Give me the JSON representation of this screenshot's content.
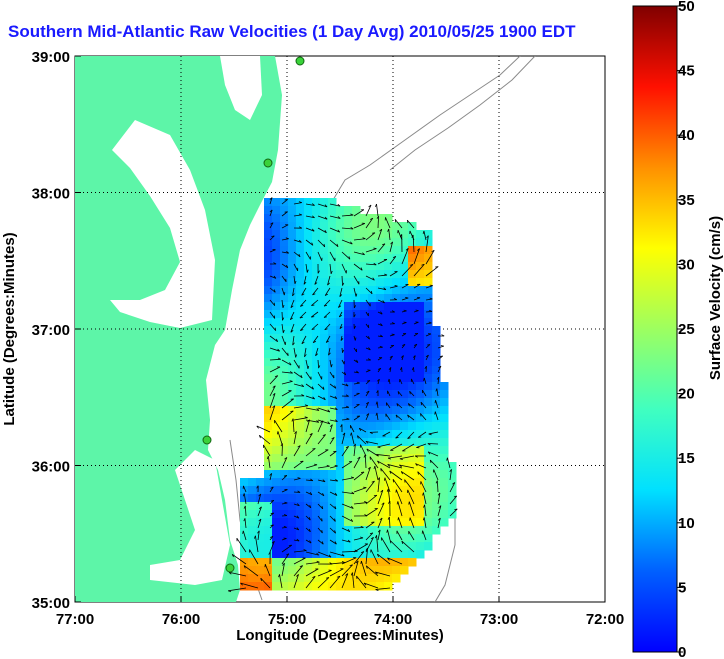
{
  "chart_data": {
    "type": "heatmap",
    "title": "Southern Mid-Atlantic Raw Velocities (1 Day Avg) 2010/05/25 1900 EDT",
    "xlabel": "Longitude (Degrees:Minutes)",
    "ylabel": "Latitude (Degrees:Minutes)",
    "x_ticks": [
      "77:00",
      "76:00",
      "75:00",
      "74:00",
      "73:00",
      "72:00"
    ],
    "y_ticks": [
      "35:00",
      "36:00",
      "37:00",
      "38:00",
      "39:00"
    ],
    "x_tick_values": [
      -77,
      -76,
      -75,
      -74,
      -73,
      -72
    ],
    "y_tick_values": [
      35,
      36,
      37,
      38,
      39
    ],
    "xlim": [
      -77,
      -72
    ],
    "ylim": [
      35,
      39
    ],
    "grid": true,
    "colorbar": {
      "label": "Surface Velocity (cm/s)",
      "ticks": [
        "0",
        "5",
        "10",
        "15",
        "20",
        "25",
        "30",
        "35",
        "40",
        "45",
        "50"
      ],
      "range": [
        0,
        50
      ],
      "colormap": "jet"
    },
    "colors": {
      "land": "#5df5a8",
      "water": "#ffffff",
      "title": "#1a1aff",
      "vectors": "#000000",
      "stations": "#3ad23a",
      "bathymetry": "#8a8a8a"
    }
  }
}
